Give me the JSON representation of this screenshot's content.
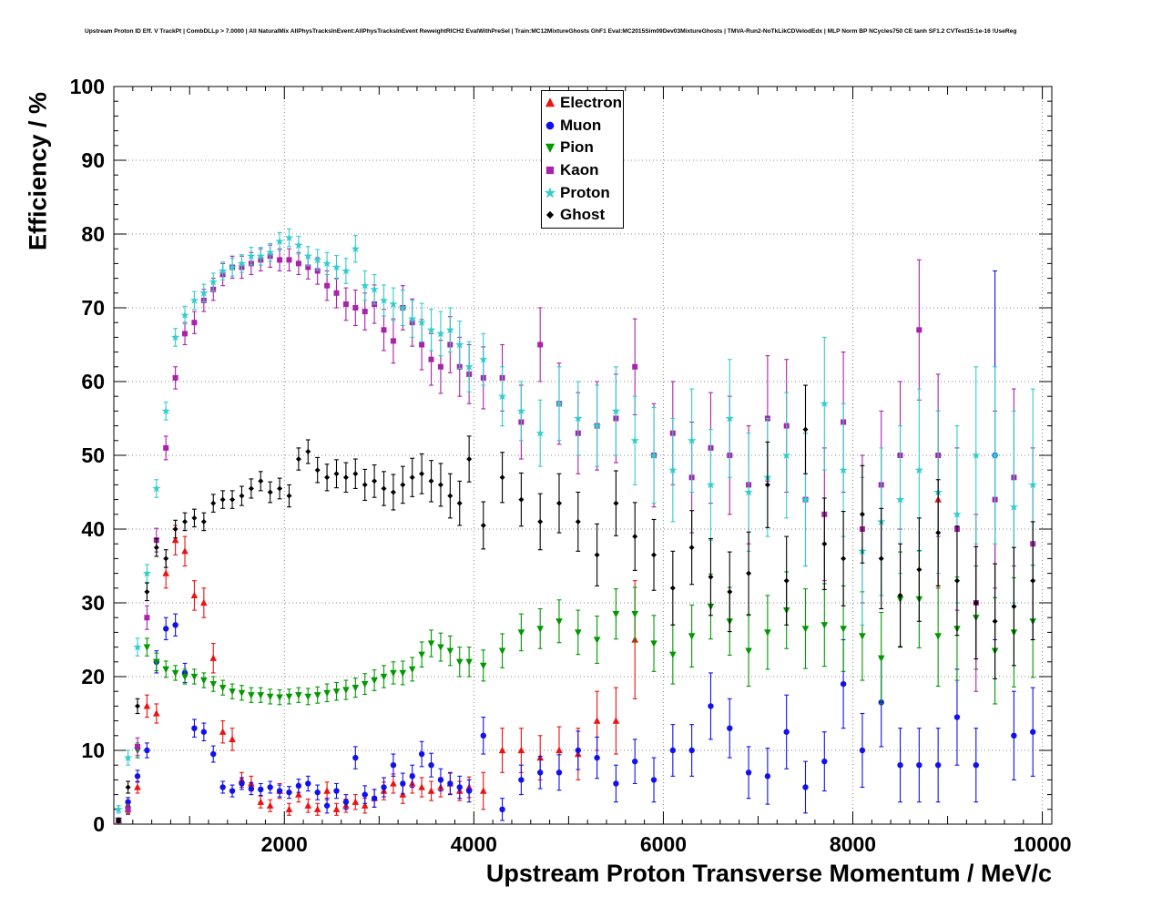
{
  "chart_data": {
    "type": "scatter",
    "title": "Upstream Proton ID Eff. V TrackPt | CombDLLp > 7.0000 | All NaturalMix AllPhysTracksInEvent:AllPhysTracksInEvent ReweightRICH2 EvalWithPreSel | Train:MC12MixtureGhosts GhF1 Eval:MC2015Sim09Dev03MixtureGhosts | TMVA-Run2-NoTkLikCDVelodEdx | MLP Norm BP NCycles750 CE tanh SF1.2 CVTest15:1e-16 !UseReg",
    "xlabel": "Upstream Proton Transverse Momentum / MeV/c",
    "ylabel": "Efficiency / %",
    "xlim": [
      200,
      10100
    ],
    "ylim": [
      0,
      100
    ],
    "xticks": [
      2000,
      4000,
      6000,
      8000,
      10000
    ],
    "yticks": [
      0,
      10,
      20,
      30,
      40,
      50,
      60,
      70,
      80,
      90,
      100
    ],
    "grid": true,
    "legend_position": "top-center",
    "series": [
      {
        "name": "Electron",
        "marker": "triangle-up",
        "color": "#ee1111",
        "x": [
          250,
          350,
          450,
          550,
          650,
          750,
          850,
          950,
          1050,
          1150,
          1250,
          1350,
          1450,
          1550,
          1650,
          1750,
          1850,
          1950,
          2050,
          2150,
          2250,
          2350,
          2450,
          2550,
          2650,
          2750,
          2850,
          2950,
          3050,
          3150,
          3250,
          3350,
          3450,
          3550,
          3650,
          3750,
          3850,
          3950,
          4100,
          4300,
          4500,
          4700,
          4900,
          5100,
          5300,
          5500,
          5700,
          8900
        ],
        "y": [
          0.5,
          2,
          5,
          16,
          15,
          34,
          38.5,
          37,
          31,
          30,
          22.5,
          12.5,
          11.5,
          6,
          5.5,
          3,
          2.5,
          4.5,
          2,
          4,
          2.5,
          2,
          4.5,
          2,
          2.5,
          3,
          2.5,
          3.5,
          4.5,
          5.5,
          4,
          5.5,
          5,
          4.5,
          5,
          5.5,
          4.5,
          5,
          4.5,
          10,
          10,
          9,
          10,
          9.5,
          14,
          14,
          25,
          44
        ],
        "ey": [
          0.3,
          0.5,
          0.8,
          1.5,
          1.3,
          2,
          2,
          2,
          2,
          2,
          2,
          1.5,
          1.5,
          1,
          1,
          0.8,
          0.8,
          1,
          0.8,
          1,
          0.9,
          0.8,
          1.2,
          0.8,
          0.9,
          1,
          1,
          1.2,
          1.2,
          1.3,
          1.2,
          1.3,
          1.3,
          1.3,
          1.3,
          1.4,
          1.3,
          1.4,
          2.5,
          3,
          3,
          3,
          3.2,
          3.5,
          4,
          4.5,
          8,
          12
        ]
      },
      {
        "name": "Muon",
        "marker": "circle",
        "color": "#1111ee",
        "x": [
          250,
          350,
          450,
          550,
          650,
          750,
          850,
          950,
          1050,
          1150,
          1250,
          1350,
          1450,
          1550,
          1650,
          1750,
          1850,
          1950,
          2050,
          2150,
          2250,
          2350,
          2450,
          2550,
          2650,
          2750,
          2850,
          2950,
          3050,
          3150,
          3250,
          3350,
          3450,
          3550,
          3650,
          3750,
          3850,
          3950,
          4100,
          4300,
          4500,
          4700,
          4900,
          5100,
          5300,
          5500,
          5700,
          5900,
          6100,
          6300,
          6500,
          6700,
          6900,
          7100,
          7300,
          7500,
          7700,
          7900,
          8100,
          8300,
          8500,
          8700,
          8900,
          9100,
          9300,
          9500,
          9700,
          9900
        ],
        "y": [
          0.5,
          3,
          6.5,
          10,
          22,
          26.5,
          27,
          20.5,
          13,
          12.5,
          9.5,
          5,
          4.5,
          5.5,
          4.8,
          4.7,
          5,
          4.5,
          4.3,
          5.2,
          5.5,
          4.3,
          2.5,
          4.5,
          3,
          9,
          4,
          3.5,
          5,
          8,
          5.5,
          6.5,
          9.5,
          8,
          6,
          5.5,
          5,
          4.5,
          12,
          2,
          6,
          7,
          7,
          10,
          9,
          5.5,
          8.5,
          6,
          10,
          10,
          16,
          13,
          7,
          6.5,
          12.5,
          5,
          8.5,
          19,
          10,
          16.5,
          8,
          8,
          8,
          14.5,
          8,
          50,
          12,
          12.5
        ],
        "ey": [
          0.3,
          0.6,
          0.8,
          1,
          1.5,
          1.5,
          1.5,
          1.3,
          1.2,
          1.2,
          1.1,
          0.8,
          0.8,
          0.8,
          0.8,
          0.8,
          0.8,
          0.8,
          0.8,
          0.9,
          1,
          1,
          1,
          1,
          1,
          1.5,
          1.2,
          1.2,
          1.3,
          1.5,
          1.4,
          1.5,
          1.7,
          1.6,
          1.5,
          1.5,
          1.5,
          1.5,
          2.5,
          1.5,
          2,
          2.2,
          2.4,
          2.6,
          2.8,
          2.5,
          3,
          3,
          3.5,
          3.5,
          4.5,
          4,
          3.5,
          3.8,
          5,
          3.5,
          4,
          6,
          5,
          6,
          5,
          5,
          5,
          6.5,
          5,
          25,
          6,
          6
        ]
      },
      {
        "name": "Pion",
        "marker": "triangle-down",
        "color": "#009900",
        "x": [
          250,
          350,
          450,
          550,
          650,
          750,
          850,
          950,
          1050,
          1150,
          1250,
          1350,
          1450,
          1550,
          1650,
          1750,
          1850,
          1950,
          2050,
          2150,
          2250,
          2350,
          2450,
          2550,
          2650,
          2750,
          2850,
          2950,
          3050,
          3150,
          3250,
          3350,
          3450,
          3550,
          3650,
          3750,
          3850,
          3950,
          4100,
          4300,
          4500,
          4700,
          4900,
          5100,
          5300,
          5500,
          5700,
          5900,
          6100,
          6300,
          6500,
          6700,
          6900,
          7100,
          7300,
          7500,
          7700,
          7900,
          8100,
          8300,
          8500,
          8700,
          8900,
          9100,
          9300,
          9500,
          9700,
          9900
        ],
        "y": [
          0.5,
          2,
          10,
          24,
          22,
          21,
          20.5,
          20,
          20,
          19.5,
          19,
          18.5,
          18,
          17.8,
          17.5,
          17.5,
          17.3,
          17.2,
          17.3,
          17.5,
          17.3,
          17.5,
          17.8,
          18,
          18.2,
          18.5,
          19,
          19.5,
          20,
          20.5,
          20.5,
          21,
          23,
          24.5,
          24,
          23.5,
          22,
          22,
          21.5,
          23.5,
          26,
          26.5,
          27.5,
          26,
          25,
          28.5,
          28.5,
          24.5,
          23,
          25.5,
          29.5,
          27.5,
          23.5,
          26,
          29,
          26.5,
          27,
          26.5,
          25.5,
          22.5,
          30.5,
          30.5,
          25.5,
          26.5,
          28,
          23.5,
          26,
          27.5
        ],
        "ey": [
          0.3,
          0.6,
          1,
          1.2,
          1.2,
          1.1,
          1,
          1,
          1,
          1,
          1,
          1,
          1,
          1,
          1,
          1,
          1,
          1,
          1,
          1,
          1.1,
          1.1,
          1.2,
          1.2,
          1.3,
          1.3,
          1.4,
          1.4,
          1.5,
          1.5,
          1.6,
          1.6,
          1.7,
          1.8,
          1.9,
          2,
          2,
          2,
          2.1,
          2.3,
          2.5,
          2.7,
          2.9,
          3,
          3.2,
          3.4,
          3.6,
          3.8,
          4,
          4.2,
          4.4,
          4.6,
          4.8,
          5,
          5.2,
          5.4,
          5.6,
          5.8,
          6,
          6.2,
          6.4,
          6.6,
          6.8,
          7,
          7,
          7.2,
          7.4,
          7.6
        ]
      },
      {
        "name": "Kaon",
        "marker": "square",
        "color": "#aa22aa",
        "x": [
          250,
          350,
          450,
          550,
          650,
          750,
          850,
          950,
          1050,
          1150,
          1250,
          1350,
          1450,
          1550,
          1650,
          1750,
          1850,
          1950,
          2050,
          2150,
          2250,
          2350,
          2450,
          2550,
          2650,
          2750,
          2850,
          2950,
          3050,
          3150,
          3250,
          3350,
          3450,
          3550,
          3650,
          3750,
          3850,
          3950,
          4100,
          4300,
          4500,
          4700,
          4900,
          5100,
          5300,
          5500,
          5700,
          5900,
          6100,
          6300,
          6500,
          6700,
          6900,
          7100,
          7300,
          7500,
          7700,
          7900,
          8100,
          8300,
          8500,
          8700,
          8900,
          9100,
          9300,
          9500,
          9700,
          9900
        ],
        "y": [
          0.5,
          2,
          10.5,
          28,
          38.5,
          51,
          60.5,
          66.5,
          68,
          71,
          72.5,
          74.5,
          75.5,
          75.5,
          76,
          76.5,
          77,
          76.5,
          76.5,
          76,
          75.5,
          75,
          73,
          72,
          70.5,
          70,
          69.5,
          70.5,
          67,
          65.5,
          70,
          68,
          65,
          63,
          62,
          65,
          62,
          61,
          60.5,
          60.5,
          54.5,
          65,
          57,
          53,
          54,
          55,
          62,
          50,
          53,
          47,
          51,
          50,
          46,
          55,
          54,
          44,
          42,
          54.5,
          40,
          46,
          50,
          67,
          50,
          40,
          30,
          44,
          47,
          38
        ],
        "ey": [
          0.3,
          0.7,
          1.2,
          1.6,
          1.6,
          1.6,
          1.5,
          1.5,
          1.5,
          1.5,
          1.5,
          1.5,
          1.5,
          1.5,
          1.5,
          1.5,
          1.5,
          1.5,
          1.5,
          1.5,
          1.6,
          1.8,
          2,
          2,
          2.2,
          2.4,
          2.5,
          2.6,
          2.8,
          3,
          3,
          3.2,
          3.4,
          3.5,
          3.6,
          3.8,
          4,
          4,
          4.2,
          4.5,
          5,
          5,
          5.5,
          5.5,
          6,
          6,
          6.5,
          7,
          7,
          7.5,
          7.5,
          8,
          8,
          8.5,
          9,
          9,
          9,
          9.5,
          10,
          10,
          10,
          9.5,
          11,
          11,
          12,
          12,
          12,
          13
        ]
      },
      {
        "name": "Proton",
        "marker": "star",
        "color": "#33cccc",
        "x": [
          250,
          350,
          450,
          550,
          650,
          750,
          850,
          950,
          1050,
          1150,
          1250,
          1350,
          1450,
          1550,
          1650,
          1750,
          1850,
          1950,
          2050,
          2150,
          2250,
          2350,
          2450,
          2550,
          2650,
          2750,
          2850,
          2950,
          3050,
          3150,
          3250,
          3350,
          3450,
          3550,
          3650,
          3750,
          3850,
          3950,
          4100,
          4300,
          4500,
          4700,
          4900,
          5100,
          5300,
          5500,
          5700,
          5900,
          6100,
          6300,
          6500,
          6700,
          6900,
          7100,
          7300,
          7500,
          7700,
          7900,
          8100,
          8300,
          8500,
          8700,
          8900,
          9100,
          9300,
          9500,
          9700,
          9900
        ],
        "y": [
          2,
          9,
          24,
          34,
          45.5,
          56,
          66,
          69,
          71,
          72,
          73.5,
          75,
          75.5,
          76,
          77,
          77,
          77.5,
          79,
          79.5,
          78.5,
          77,
          76.5,
          76,
          75.5,
          75,
          78,
          73,
          72.5,
          71,
          70.5,
          70,
          68.5,
          68,
          67,
          66.5,
          67,
          65,
          62,
          63,
          58,
          56,
          53,
          57,
          55,
          54,
          56,
          52,
          50,
          48,
          52,
          46,
          55,
          45,
          47,
          50,
          44,
          57,
          48,
          37,
          41,
          44,
          48,
          45,
          42,
          50,
          50,
          43,
          46
        ],
        "ey": [
          0.5,
          1,
          1.2,
          1.2,
          1.2,
          1.2,
          1.2,
          1.2,
          1.2,
          1.2,
          1.2,
          1.2,
          1.2,
          1.2,
          1.2,
          1.2,
          1.2,
          1.2,
          1.2,
          1.2,
          1.3,
          1.4,
          1.5,
          1.6,
          1.7,
          1.8,
          2,
          2,
          2.1,
          2.2,
          2.4,
          2.5,
          2.6,
          2.8,
          3,
          3,
          3.2,
          3.4,
          3.5,
          4,
          4,
          4.5,
          5,
          5,
          5.5,
          6,
          6,
          6.5,
          7,
          7,
          7.5,
          8,
          8,
          8,
          8.5,
          9,
          9,
          9,
          10,
          10,
          10,
          11,
          11,
          12,
          12,
          12,
          13,
          13
        ]
      },
      {
        "name": "Ghost",
        "marker": "diamond",
        "color": "#000000",
        "x": [
          250,
          350,
          450,
          550,
          650,
          750,
          850,
          950,
          1050,
          1150,
          1250,
          1350,
          1450,
          1550,
          1650,
          1750,
          1850,
          1950,
          2050,
          2150,
          2250,
          2350,
          2450,
          2550,
          2650,
          2750,
          2850,
          2950,
          3050,
          3150,
          3250,
          3350,
          3450,
          3550,
          3650,
          3750,
          3850,
          3950,
          4100,
          4300,
          4500,
          4700,
          4900,
          5100,
          5300,
          5500,
          5700,
          5900,
          6100,
          6300,
          6500,
          6700,
          6900,
          7100,
          7300,
          7500,
          7700,
          7900,
          8100,
          8300,
          8500,
          8700,
          8900,
          9100,
          9300,
          9500,
          9700,
          9900
        ],
        "y": [
          0.5,
          5,
          16,
          31.5,
          37.5,
          36,
          40,
          41,
          41.5,
          41,
          43.5,
          44,
          44,
          44.5,
          45.5,
          46.5,
          45,
          45.5,
          44.5,
          49.5,
          50.5,
          48,
          47,
          47.5,
          47,
          47.5,
          46,
          46.5,
          45.5,
          45,
          46,
          47,
          47.5,
          46.5,
          46,
          44.5,
          43.5,
          49.5,
          40.5,
          47,
          44,
          41,
          43.5,
          41,
          36.5,
          43.5,
          39,
          36.5,
          32,
          37.5,
          33.5,
          31.5,
          34,
          46,
          33,
          53.5,
          38,
          36,
          42,
          36,
          31,
          34.5,
          39.5,
          33,
          30,
          27.5,
          29.5,
          33
        ],
        "ey": [
          0.3,
          0.8,
          1,
          1.2,
          1.2,
          1.2,
          1.2,
          1.2,
          1.2,
          1.2,
          1.2,
          1.2,
          1.2,
          1.3,
          1.3,
          1.3,
          1.4,
          1.4,
          1.5,
          1.5,
          1.6,
          1.7,
          1.8,
          1.9,
          2,
          2,
          2.1,
          2.2,
          2.3,
          2.4,
          2.5,
          2.6,
          2.7,
          2.8,
          2.9,
          3,
          3,
          3.1,
          3.2,
          3.4,
          3.6,
          3.8,
          4,
          4,
          4.2,
          4.4,
          4.6,
          4.8,
          5,
          5,
          5.2,
          5.4,
          5.6,
          5.8,
          6,
          6,
          6.2,
          6.4,
          6.6,
          6.8,
          7,
          7,
          7.2,
          7.4,
          7.6,
          7.8,
          8,
          8
        ]
      }
    ]
  }
}
